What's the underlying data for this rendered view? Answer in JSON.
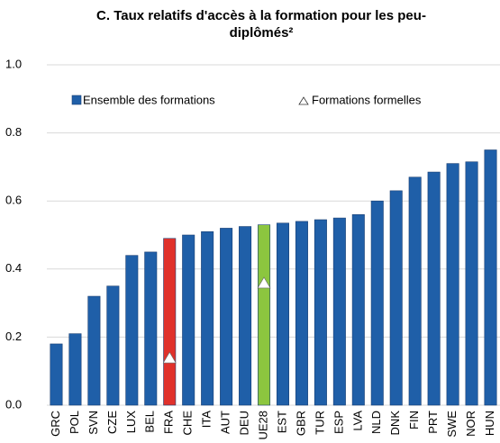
{
  "chart_data": {
    "type": "bar",
    "title": "C. Taux relatifs d'accès à la formation pour les peu-diplômés²",
    "categories": [
      "GRC",
      "POL",
      "SVN",
      "CZE",
      "LUX",
      "BEL",
      "FRA",
      "CHE",
      "ITA",
      "AUT",
      "DEU",
      "UE28",
      "EST",
      "GBR",
      "TUR",
      "ESP",
      "LVA",
      "NLD",
      "DNK",
      "FIN",
      "PRT",
      "SWE",
      "NOR",
      "HUN"
    ],
    "series": [
      {
        "name": "Ensemble des formations",
        "color": "#1f5fa8",
        "bar_colors": [
          "#1f5fa8",
          "#1f5fa8",
          "#1f5fa8",
          "#1f5fa8",
          "#1f5fa8",
          "#1f5fa8",
          "#e0312b",
          "#1f5fa8",
          "#1f5fa8",
          "#1f5fa8",
          "#1f5fa8",
          "#8cc63f",
          "#1f5fa8",
          "#1f5fa8",
          "#1f5fa8",
          "#1f5fa8",
          "#1f5fa8",
          "#1f5fa8",
          "#1f5fa8",
          "#1f5fa8",
          "#1f5fa8",
          "#1f5fa8",
          "#1f5fa8",
          "#1f5fa8"
        ],
        "values": [
          0.18,
          0.21,
          0.32,
          0.35,
          0.44,
          0.45,
          0.49,
          0.5,
          0.51,
          0.52,
          0.525,
          0.53,
          0.535,
          0.54,
          0.545,
          0.55,
          0.56,
          0.6,
          0.63,
          0.67,
          0.685,
          0.71,
          0.715,
          0.75
        ]
      },
      {
        "name": "Formations formelles",
        "color": "#ffffff",
        "marker": "triangle",
        "values": [
          null,
          null,
          null,
          null,
          null,
          null,
          0.14,
          null,
          null,
          null,
          null,
          0.36,
          null,
          null,
          null,
          null,
          null,
          null,
          null,
          null,
          null,
          null,
          null,
          null
        ]
      }
    ],
    "ylim": [
      0,
      1.0
    ],
    "yticks": [
      {
        "value": 0,
        "label": "0.0"
      },
      0.2,
      0.4,
      0.6,
      0.8,
      {
        "value": 1.0,
        "label": "1.0"
      }
    ],
    "grid": true
  }
}
